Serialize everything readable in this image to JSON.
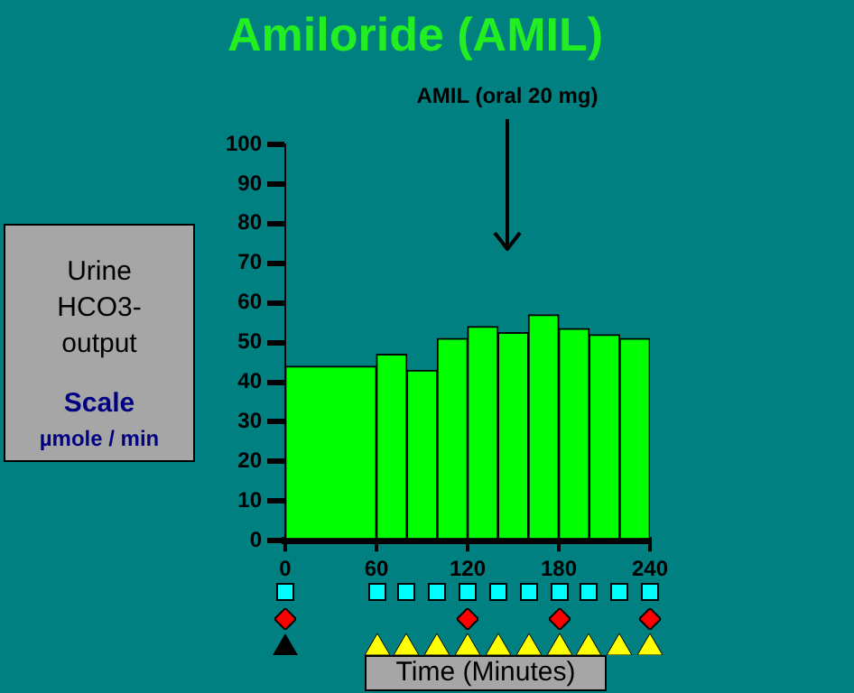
{
  "chart_data": {
    "type": "histogram",
    "title": "Amiloride (AMIL)",
    "ylabel": "Urine HCO3-output",
    "xlabel": "Time (Minutes)",
    "bins": [
      0,
      60,
      80,
      100,
      120,
      140,
      160,
      180,
      200,
      220,
      240
    ],
    "values": [
      44,
      47,
      43,
      51,
      54,
      52.5,
      57,
      53.5,
      52,
      51
    ],
    "color": "#00ff00",
    "xlim": [
      0,
      240
    ],
    "xticks": [
      0,
      60,
      120,
      180,
      240
    ],
    "ylim": [
      0,
      100
    ],
    "yticks": [
      0,
      10,
      20,
      30,
      40,
      50,
      60,
      70,
      80,
      90,
      100
    ],
    "annotations": [
      "Scale",
      "µmole / min",
      "AMIL (oral 20 mg)"
    ]
  }
}
